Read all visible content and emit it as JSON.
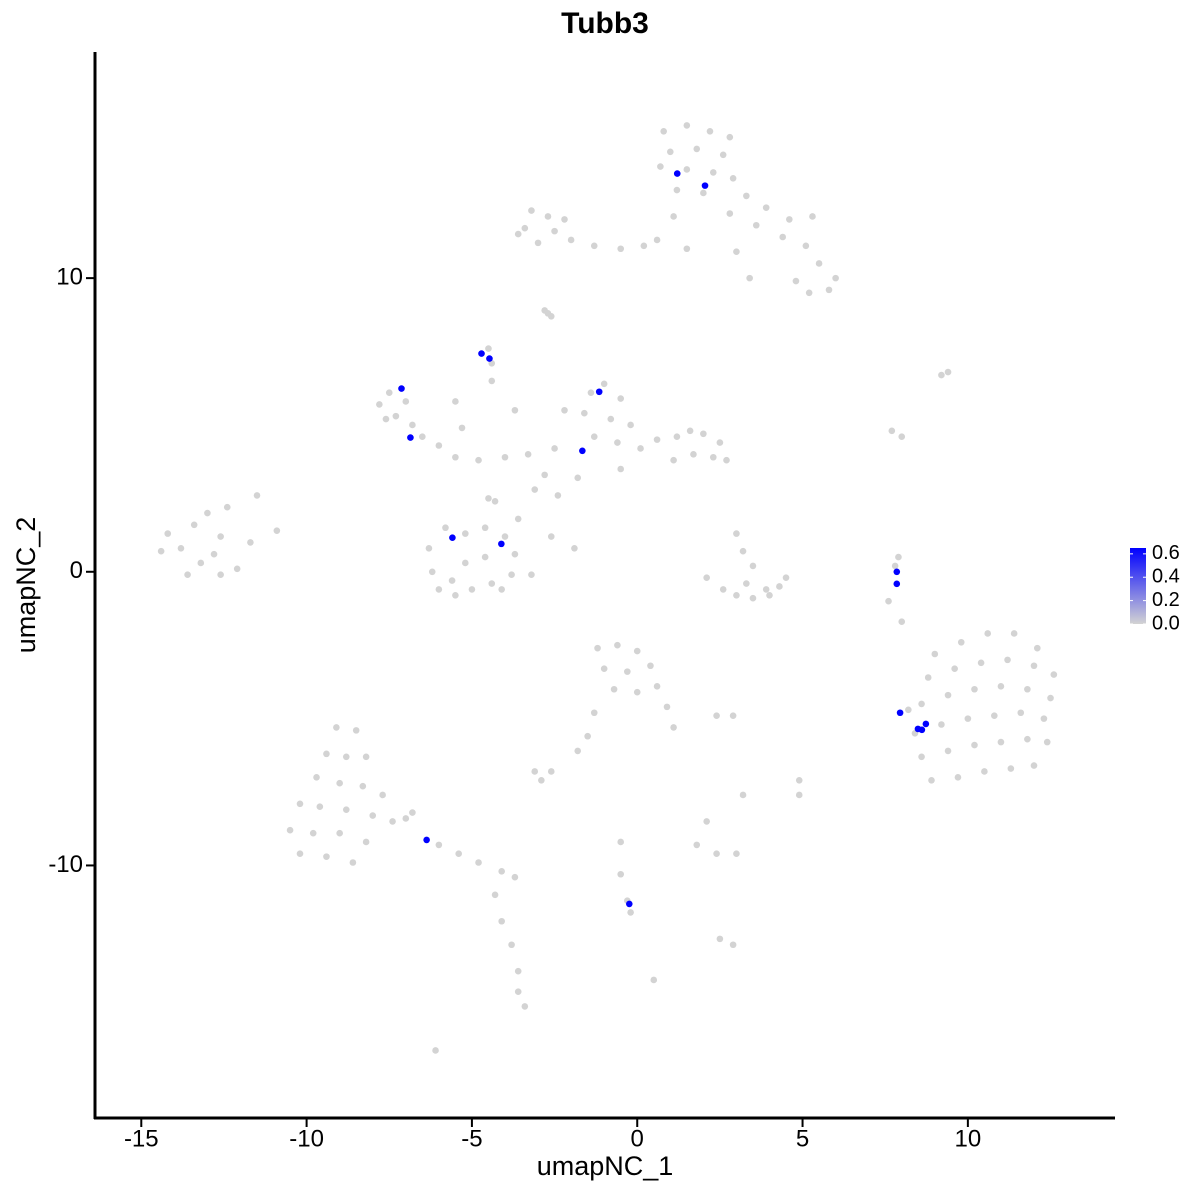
{
  "chart_data": {
    "type": "scatter",
    "title": "Tubb3",
    "x_label": "umapNC_1",
    "y_label": "umapNC_2",
    "xlim": [
      -16.4,
      14.45
    ],
    "ylim": [
      -18.6,
      17.7
    ],
    "xticks": [
      -15,
      -10,
      -5,
      0,
      5,
      10
    ],
    "yticks": [
      -10,
      0,
      10
    ],
    "colorbar": {
      "lim": [
        0,
        0.65
      ],
      "low_color": "#d3d3d3",
      "high_color": "#0000ff",
      "ticks": [
        {
          "value": 0,
          "label": "0.0"
        },
        {
          "value": 0.2,
          "label": "0.2"
        },
        {
          "value": 0.4,
          "label": "0.4"
        },
        {
          "value": 0.6,
          "label": "0.6"
        }
      ]
    },
    "series": [
      {
        "color": "#d3d3d3",
        "x": [
          0.8,
          1.5,
          2.2,
          2.8,
          1,
          1.8,
          2.6,
          0.7,
          1.5,
          2.3,
          2.9,
          1.2,
          2,
          3.3,
          3.9,
          4.6,
          5.3,
          4.4,
          5.1,
          5.5,
          6,
          5.8,
          5.2,
          4.8,
          3.6,
          2.8,
          1.1,
          0.6,
          1.5,
          3,
          3.4,
          -3.2,
          -2.7,
          -3.4,
          -2.5,
          -3,
          -2,
          -1.3,
          -0.5,
          0.2,
          -3.6,
          -2.2,
          -2.8,
          -2.6,
          -2.7,
          9.2,
          9.4,
          -7.5,
          -7.8,
          -7.3,
          -7,
          -6.8,
          -7.6,
          -6.5,
          -6,
          -5.5,
          -4.8,
          -4,
          -3.3,
          -2.5,
          -5.3,
          -5.5,
          -4.4,
          -3.7,
          -2.2,
          -2.8,
          -2.4,
          -4.3,
          -4.5,
          -4.4,
          -1.4,
          -1,
          -0.5,
          -1.6,
          -0.8,
          -0.2,
          -1.3,
          -0.6,
          0.1,
          0.6,
          1.2,
          1.6,
          2,
          2.5,
          2.3,
          1.7,
          2.7,
          1.1,
          -0.5,
          -1.8,
          -14.2,
          -13.8,
          -13.4,
          -13,
          -12.6,
          -13.2,
          -14.4,
          -13.6,
          -12.8,
          -12.4,
          -12.1,
          -11.7,
          -11.5,
          -10.9,
          -12.6,
          -6.3,
          -5.8,
          -5.2,
          -4.6,
          -4,
          -3.7,
          -6.2,
          -5.6,
          -5,
          -4.4,
          -3.8,
          -6,
          -5.2,
          -4.6,
          -4.1,
          -5.5,
          -3.2,
          -3.6,
          -4.5,
          -3.1,
          -2.6,
          -1.9,
          3,
          3.2,
          3.5,
          2.6,
          3,
          3.5,
          4,
          4.3,
          4.5,
          2.1,
          3.9,
          3.3,
          7.9,
          7.8,
          7.6,
          8,
          7.7,
          8,
          9,
          9.8,
          10.6,
          11.4,
          12.1,
          8.8,
          9.6,
          10.4,
          11.2,
          12,
          12.6,
          8.6,
          9.4,
          10.2,
          11,
          11.8,
          12.5,
          8.4,
          9.2,
          10,
          10.8,
          11.6,
          12.3,
          8.6,
          9.4,
          10.2,
          11,
          11.8,
          12.4,
          8.9,
          9.7,
          10.5,
          11.3,
          12,
          8.2,
          -1.2,
          -0.6,
          0,
          -1,
          -0.3,
          0.4,
          -0.7,
          0,
          0.6,
          0.9,
          1.1,
          -1.3,
          -1.5,
          -1.8,
          2.4,
          2.9,
          -9.1,
          -8.5,
          -9.4,
          -8.8,
          -8.2,
          -9.7,
          -9,
          -8.3,
          -7.7,
          -10.2,
          -9.6,
          -8.8,
          -8,
          -7.4,
          -10.5,
          -9.8,
          -9,
          -8.2,
          -10.2,
          -9.4,
          -8.6,
          -7,
          -6.8,
          -6,
          -5.4,
          -4.8,
          -4.1,
          -3.7,
          -4.3,
          -4.1,
          -3.8,
          -3.6,
          -3.6,
          -3.4,
          -6.1,
          -3.1,
          -2.6,
          -2.9,
          -0.5,
          -0.5,
          -0.3,
          -0.2,
          0.5,
          1.8,
          2.4,
          3,
          2.1,
          2.5,
          2.9,
          4.9,
          4.9,
          3.2
        ],
        "y": [
          15,
          15.2,
          15,
          14.8,
          14.3,
          14.4,
          14.2,
          13.8,
          13.7,
          13.6,
          13.4,
          13,
          12.9,
          12.8,
          12.4,
          12,
          12.1,
          11.4,
          11.1,
          10.5,
          10,
          9.6,
          9.5,
          9.9,
          11.8,
          12.2,
          12.1,
          11.3,
          11,
          10.9,
          10,
          12.3,
          12.1,
          11.7,
          11.6,
          11.2,
          11.3,
          11.1,
          11,
          11.1,
          11.5,
          12,
          8.9,
          8.7,
          8.8,
          6.7,
          6.8,
          6.1,
          5.7,
          5.3,
          5.8,
          5,
          5.2,
          4.6,
          4.3,
          3.9,
          3.8,
          3.9,
          4,
          4.2,
          4.9,
          5.8,
          6.5,
          5.5,
          5.5,
          3.3,
          2.6,
          2.4,
          7.6,
          7.1,
          6.1,
          6.4,
          5.9,
          5.4,
          5.2,
          5,
          4.6,
          4.4,
          4.2,
          4.5,
          4.6,
          4.8,
          4.7,
          4.4,
          3.9,
          4,
          3.8,
          3.8,
          3.5,
          3.2,
          1.3,
          0.8,
          1.6,
          2,
          1.2,
          0.3,
          0.7,
          -0.1,
          0.6,
          2.2,
          0.1,
          1,
          2.6,
          1.4,
          -0.1,
          0.8,
          1.5,
          1.3,
          1.5,
          1.2,
          0.6,
          0,
          -0.3,
          -0.6,
          -0.4,
          -0.1,
          -0.6,
          0.3,
          0.5,
          -0.6,
          -0.8,
          -0.1,
          1.8,
          2.5,
          2.8,
          1.2,
          0.8,
          1.3,
          0.7,
          0.2,
          -0.6,
          -0.8,
          -0.9,
          -0.8,
          -0.5,
          -0.2,
          -0.2,
          -0.6,
          -0.4,
          0.5,
          0.2,
          -1,
          -1.7,
          4.8,
          4.6,
          -2.8,
          -2.4,
          -2.1,
          -2.1,
          -2.6,
          -3.6,
          -3.3,
          -3.1,
          -3,
          -3.2,
          -3.5,
          -4.5,
          -4.2,
          -4,
          -3.9,
          -4,
          -4.3,
          -5.5,
          -5.2,
          -5,
          -4.9,
          -4.8,
          -5,
          -6.3,
          -6.1,
          -5.9,
          -5.8,
          -5.7,
          -5.8,
          -7.1,
          -7,
          -6.8,
          -6.7,
          -6.6,
          -4.7,
          -2.6,
          -2.5,
          -2.7,
          -3.3,
          -3.4,
          -3.2,
          -4,
          -4.1,
          -3.9,
          -4.6,
          -5.3,
          -4.8,
          -5.6,
          -6.1,
          -4.9,
          -4.9,
          -5.3,
          -5.4,
          -6.2,
          -6.3,
          -6.3,
          -7,
          -7.2,
          -7.3,
          -7.6,
          -7.9,
          -8,
          -8.1,
          -8.3,
          -8.5,
          -8.8,
          -8.9,
          -8.9,
          -9.2,
          -9.6,
          -9.7,
          -9.9,
          -8.4,
          -8.2,
          -9.3,
          -9.6,
          -9.9,
          -10.2,
          -10.4,
          -11,
          -11.9,
          -12.7,
          -13.6,
          -14.3,
          -14.8,
          -16.3,
          -6.8,
          -6.8,
          -7.1,
          -9.2,
          -10.3,
          -11.2,
          -11.6,
          -13.9,
          -9.3,
          -9.6,
          -9.6,
          -8.5,
          -12.5,
          -12.7,
          -7.1,
          -7.6,
          -7.6
        ]
      },
      {
        "color": "#0000ff",
        "x": [
          1.21,
          2.05,
          -4.71,
          -4.47,
          -7.13,
          -6.86,
          -1.15,
          -1.66,
          -5.59,
          -4.11,
          7.85,
          7.85,
          7.95,
          8.49,
          8.73,
          8.61,
          -6.37,
          -0.24
        ],
        "y": [
          13.56,
          13.15,
          7.43,
          7.26,
          6.24,
          4.57,
          6.13,
          4.12,
          1.16,
          0.95,
          0,
          -0.41,
          -4.8,
          -5.35,
          -5.18,
          -5.38,
          -9.13,
          -11.31
        ]
      }
    ]
  }
}
